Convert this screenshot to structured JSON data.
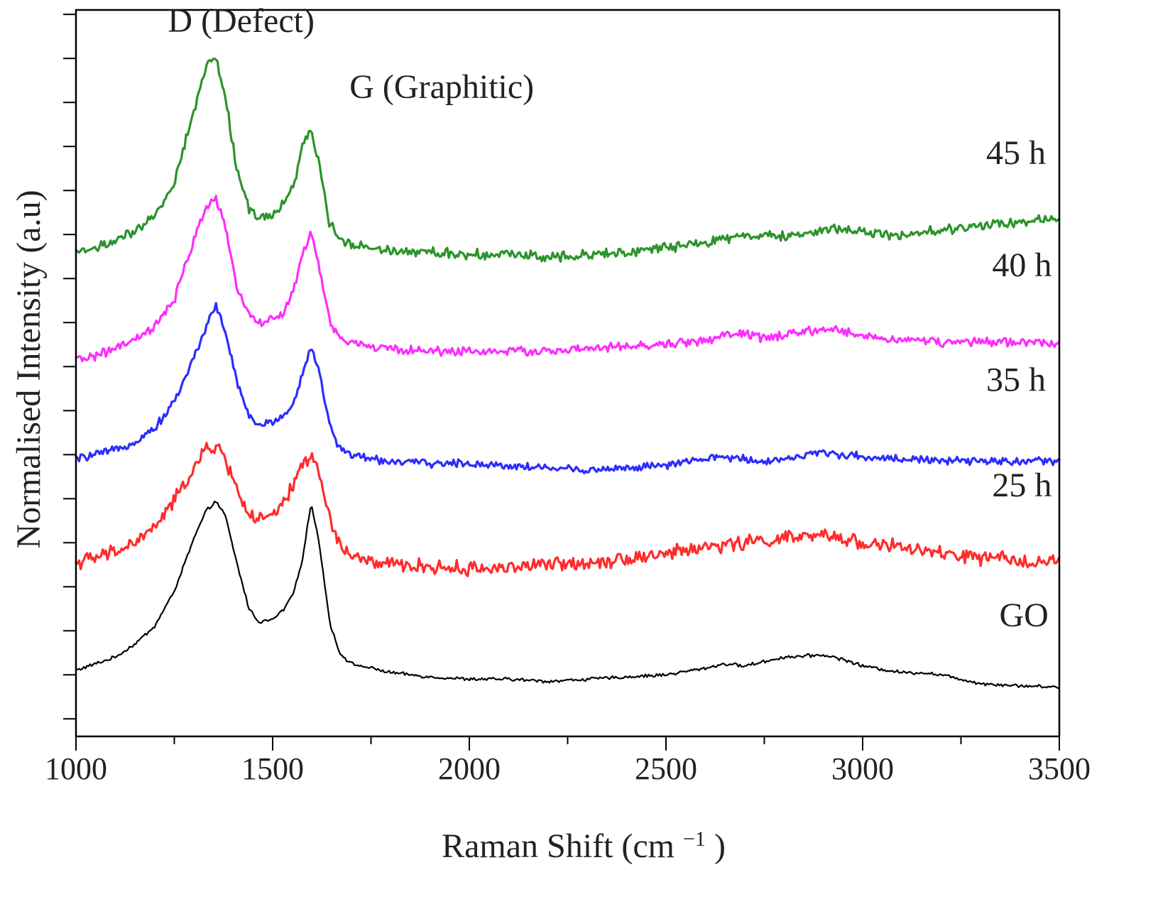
{
  "chart_data": {
    "type": "line",
    "title": "",
    "xlabel": "Raman Shift (cm",
    "xlabel_superscript": "−1",
    "xlabel_suffix": ")",
    "ylabel": "Normalised Intensity (a.u)",
    "xlim": [
      1000,
      3500
    ],
    "ylim": [
      0,
      16.5
    ],
    "x_ticks": [
      1000,
      1500,
      2000,
      2500,
      3000,
      3500
    ],
    "x_tick_labels": [
      "1000",
      "1500",
      "2000",
      "2500",
      "3000",
      "3500"
    ],
    "y_tick_labels_shown": false,
    "grid": false,
    "legend": "none",
    "annotations": [
      {
        "text": "D (Defect)",
        "x": 1420,
        "y": 16.0
      },
      {
        "text": "G (Graphitic)",
        "x": 1930,
        "y": 14.5
      }
    ],
    "series": [
      {
        "name": "GO",
        "label": "GO",
        "color": "#000000",
        "label_x": 3410,
        "label_y": 2.5,
        "noise": 0.03,
        "x": [
          1000,
          1050,
          1100,
          1150,
          1200,
          1250,
          1300,
          1330,
          1355,
          1380,
          1410,
          1440,
          1465,
          1500,
          1530,
          1555,
          1575,
          1598,
          1620,
          1645,
          1670,
          1700,
          1750,
          1800,
          1900,
          2000,
          2100,
          2200,
          2300,
          2400,
          2500,
          2600,
          2650,
          2700,
          2750,
          2800,
          2900,
          2950,
          3000,
          3100,
          3150,
          3200,
          3250,
          3300,
          3400,
          3500
        ],
        "y": [
          1.5,
          1.65,
          1.8,
          2.1,
          2.5,
          3.3,
          4.5,
          5.1,
          5.35,
          5.0,
          3.9,
          2.9,
          2.6,
          2.65,
          2.9,
          3.3,
          4.0,
          5.3,
          4.3,
          2.6,
          1.9,
          1.65,
          1.55,
          1.45,
          1.35,
          1.3,
          1.3,
          1.25,
          1.3,
          1.35,
          1.4,
          1.55,
          1.65,
          1.6,
          1.7,
          1.8,
          1.85,
          1.75,
          1.6,
          1.45,
          1.45,
          1.4,
          1.3,
          1.2,
          1.15,
          1.12
        ]
      },
      {
        "name": "25 h",
        "label": "25 h",
        "color": "#ff1a1a",
        "label_x": 3405,
        "label_y": 5.45,
        "noise": 0.13,
        "x": [
          1000,
          1050,
          1100,
          1150,
          1200,
          1250,
          1300,
          1330,
          1355,
          1380,
          1410,
          1440,
          1465,
          1500,
          1530,
          1555,
          1575,
          1598,
          1620,
          1645,
          1670,
          1700,
          1750,
          1800,
          1900,
          2000,
          2100,
          2200,
          2300,
          2400,
          2500,
          2600,
          2650,
          2700,
          2750,
          2800,
          2900,
          2950,
          3000,
          3100,
          3150,
          3200,
          3250,
          3300,
          3400,
          3500
        ],
        "y": [
          3.95,
          4.05,
          4.2,
          4.4,
          4.75,
          5.35,
          6.1,
          6.5,
          6.6,
          6.3,
          5.6,
          5.05,
          4.9,
          5.0,
          5.3,
          5.75,
          6.2,
          6.4,
          5.9,
          4.95,
          4.35,
          4.1,
          3.95,
          3.9,
          3.85,
          3.8,
          3.85,
          3.9,
          3.95,
          4.05,
          4.15,
          4.3,
          4.35,
          4.4,
          4.45,
          4.5,
          4.55,
          4.5,
          4.4,
          4.3,
          4.2,
          4.15,
          4.1,
          4.05,
          4.0,
          3.95
        ]
      },
      {
        "name": "35 h",
        "label": "35 h",
        "color": "#1a1aff",
        "label_x": 3390,
        "label_y": 7.85,
        "noise": 0.07,
        "x": [
          1000,
          1050,
          1100,
          1150,
          1200,
          1250,
          1300,
          1330,
          1355,
          1380,
          1410,
          1440,
          1465,
          1500,
          1530,
          1555,
          1575,
          1598,
          1620,
          1645,
          1670,
          1700,
          1750,
          1800,
          1900,
          2000,
          2100,
          2200,
          2300,
          2400,
          2500,
          2600,
          2650,
          2700,
          2750,
          2800,
          2900,
          2950,
          3000,
          3100,
          3150,
          3200,
          3250,
          3300,
          3400,
          3500
        ],
        "y": [
          6.3,
          6.4,
          6.5,
          6.7,
          7.0,
          7.6,
          8.6,
          9.3,
          9.8,
          9.2,
          8.0,
          7.3,
          7.05,
          7.15,
          7.3,
          7.6,
          8.2,
          8.9,
          8.2,
          7.05,
          6.55,
          6.4,
          6.3,
          6.25,
          6.2,
          6.2,
          6.15,
          6.1,
          6.05,
          6.1,
          6.15,
          6.3,
          6.35,
          6.3,
          6.25,
          6.3,
          6.45,
          6.4,
          6.35,
          6.3,
          6.3,
          6.25,
          6.25,
          6.25,
          6.25,
          6.25
        ]
      },
      {
        "name": "40 h",
        "label": "40 h",
        "color": "#ff1aff",
        "label_x": 3405,
        "label_y": 10.45,
        "noise": 0.08,
        "x": [
          1000,
          1050,
          1100,
          1150,
          1200,
          1250,
          1300,
          1330,
          1355,
          1380,
          1410,
          1440,
          1465,
          1500,
          1530,
          1555,
          1575,
          1598,
          1620,
          1645,
          1670,
          1700,
          1750,
          1800,
          1900,
          2000,
          2100,
          2200,
          2300,
          2400,
          2500,
          2600,
          2650,
          2700,
          2750,
          2800,
          2900,
          2950,
          3000,
          3100,
          3150,
          3200,
          3250,
          3300,
          3400,
          3500
        ],
        "y": [
          8.55,
          8.65,
          8.8,
          9.0,
          9.3,
          9.9,
          11.3,
          12.0,
          12.25,
          11.5,
          10.2,
          9.6,
          9.4,
          9.45,
          9.65,
          10.2,
          10.9,
          11.45,
          10.6,
          9.4,
          9.05,
          8.95,
          8.85,
          8.8,
          8.75,
          8.75,
          8.75,
          8.75,
          8.8,
          8.85,
          8.9,
          9.0,
          9.1,
          9.15,
          9.05,
          9.1,
          9.25,
          9.2,
          9.1,
          9.0,
          9.0,
          8.95,
          8.95,
          8.95,
          8.95,
          8.95
        ]
      },
      {
        "name": "45 h",
        "label": "45 h",
        "color": "#1a8a1a",
        "label_x": 3390,
        "label_y": 13.0,
        "noise": 0.09,
        "x": [
          1000,
          1050,
          1100,
          1150,
          1200,
          1250,
          1300,
          1330,
          1355,
          1380,
          1410,
          1440,
          1465,
          1500,
          1530,
          1555,
          1575,
          1598,
          1620,
          1645,
          1670,
          1700,
          1750,
          1800,
          1900,
          2000,
          2100,
          2200,
          2300,
          2400,
          2500,
          2600,
          2650,
          2700,
          2750,
          2800,
          2900,
          2950,
          3000,
          3100,
          3150,
          3200,
          3250,
          3300,
          3400,
          3500
        ],
        "y": [
          11.0,
          11.1,
          11.25,
          11.45,
          11.8,
          12.6,
          14.2,
          15.2,
          15.45,
          14.5,
          12.85,
          12.0,
          11.75,
          11.85,
          12.1,
          12.6,
          13.4,
          13.75,
          12.9,
          11.65,
          11.3,
          11.2,
          11.1,
          11.05,
          11.0,
          10.95,
          10.95,
          10.9,
          10.95,
          11.0,
          11.1,
          11.2,
          11.3,
          11.4,
          11.35,
          11.35,
          11.5,
          11.55,
          11.45,
          11.35,
          11.45,
          11.5,
          11.55,
          11.6,
          11.7,
          11.75
        ]
      }
    ]
  }
}
